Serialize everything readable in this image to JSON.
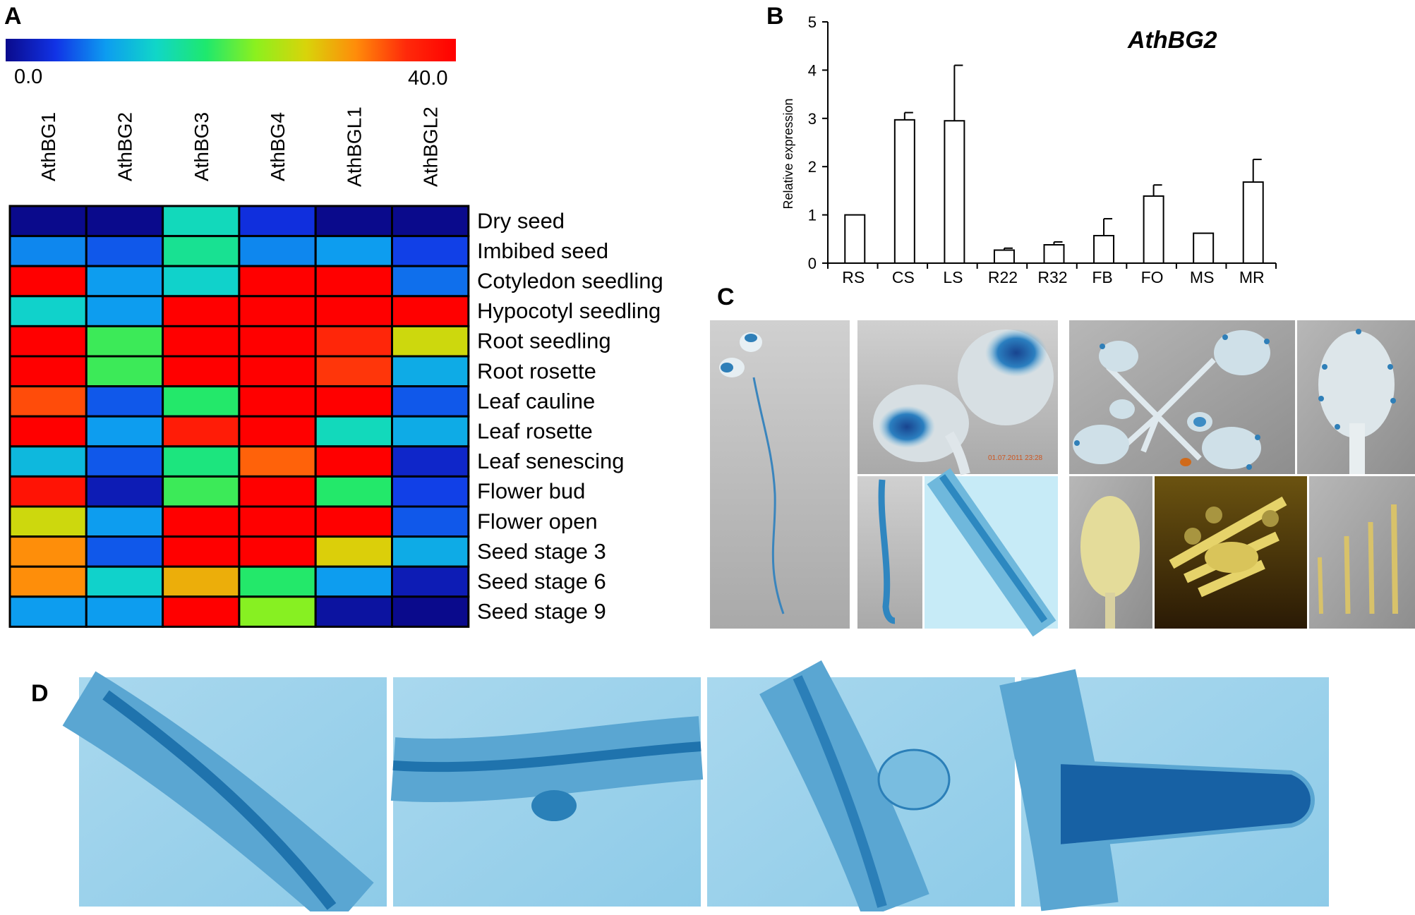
{
  "panels": {
    "a": "A",
    "b": "B",
    "c": "C",
    "d": "D"
  },
  "colorbar": {
    "min_label": "0.0",
    "max_label": "40.0",
    "min": 0,
    "max": 40,
    "colors": [
      "#0a0a8c",
      "#1133e6",
      "#0d9cf0",
      "#10d6c8",
      "#1ee86e",
      "#8cf01e",
      "#d8d40a",
      "#ff8c0a",
      "#ff2a0a",
      "#ff0000"
    ]
  },
  "chart_data": [
    {
      "type": "heatmap",
      "columns": [
        "AthBG1",
        "AthBG2",
        "AthBG3",
        "AthBG4",
        "AthBGL1",
        "AthBGL2"
      ],
      "rows": [
        "Dry seed",
        "Imbibed seed",
        "Cotyledon seedling",
        "Hypocotyl seedling",
        "Root seedling",
        "Root rosette",
        "Leaf cauline",
        "Leaf rosette",
        "Leaf senescing",
        "Flower bud",
        "Flower open",
        "Seed stage 3",
        "Seed stage 6",
        "Seed stage 9"
      ],
      "values": [
        [
          0,
          0,
          14,
          4,
          0,
          0
        ],
        [
          8,
          6,
          16,
          8,
          9,
          5
        ],
        [
          40,
          9,
          13,
          40,
          40,
          7
        ],
        [
          13,
          9,
          40,
          40,
          40,
          40
        ],
        [
          40,
          19,
          40,
          40,
          36,
          26
        ],
        [
          40,
          19,
          40,
          40,
          35,
          10
        ],
        [
          34,
          6,
          18,
          40,
          40,
          6
        ],
        [
          40,
          9,
          37,
          40,
          14,
          10
        ],
        [
          11,
          6,
          17,
          33,
          40,
          3
        ],
        [
          38,
          2,
          19,
          40,
          18,
          5
        ],
        [
          26,
          9,
          40,
          40,
          40,
          6
        ],
        [
          31,
          6,
          40,
          40,
          27,
          10
        ],
        [
          31,
          13,
          29,
          18,
          9,
          2
        ],
        [
          9,
          9,
          40,
          22,
          1,
          0
        ]
      ],
      "scale": [
        0,
        40
      ]
    },
    {
      "type": "bar",
      "title": "AthBG2",
      "ylabel": "Relative expression",
      "categories": [
        "RS",
        "CS",
        "LS",
        "R22",
        "R32",
        "FB",
        "FO",
        "MS",
        "MR"
      ],
      "values": [
        1.0,
        2.97,
        2.95,
        0.27,
        0.38,
        0.57,
        1.39,
        0.62,
        1.68
      ],
      "errors": [
        0,
        0.15,
        1.15,
        0.04,
        0.06,
        0.35,
        0.23,
        0,
        0.47
      ],
      "ylim": [
        0,
        5
      ],
      "yticks": [
        0,
        1,
        2,
        3,
        4,
        5
      ]
    }
  ],
  "photos_c": [
    {
      "name": "seedling-whole-photo",
      "stamp": ""
    },
    {
      "name": "cotyledon-closeup-photo",
      "stamp": "01.07.2011 23:28"
    },
    {
      "name": "rosette-seedling-photo",
      "stamp": ""
    },
    {
      "name": "single-leaf-photo",
      "stamp": ""
    },
    {
      "name": "root-tip-photo",
      "stamp": ""
    },
    {
      "name": "root-micrograph-photo",
      "stamp": ""
    },
    {
      "name": "flower-bud-photo",
      "stamp": ""
    },
    {
      "name": "open-flower-photo",
      "stamp": ""
    },
    {
      "name": "siliques-photo",
      "stamp": ""
    }
  ],
  "photos_d": [
    {
      "name": "root-stage-1-micrograph"
    },
    {
      "name": "root-stage-2-micrograph"
    },
    {
      "name": "root-stage-3-micrograph"
    },
    {
      "name": "root-stage-4-micrograph"
    }
  ]
}
